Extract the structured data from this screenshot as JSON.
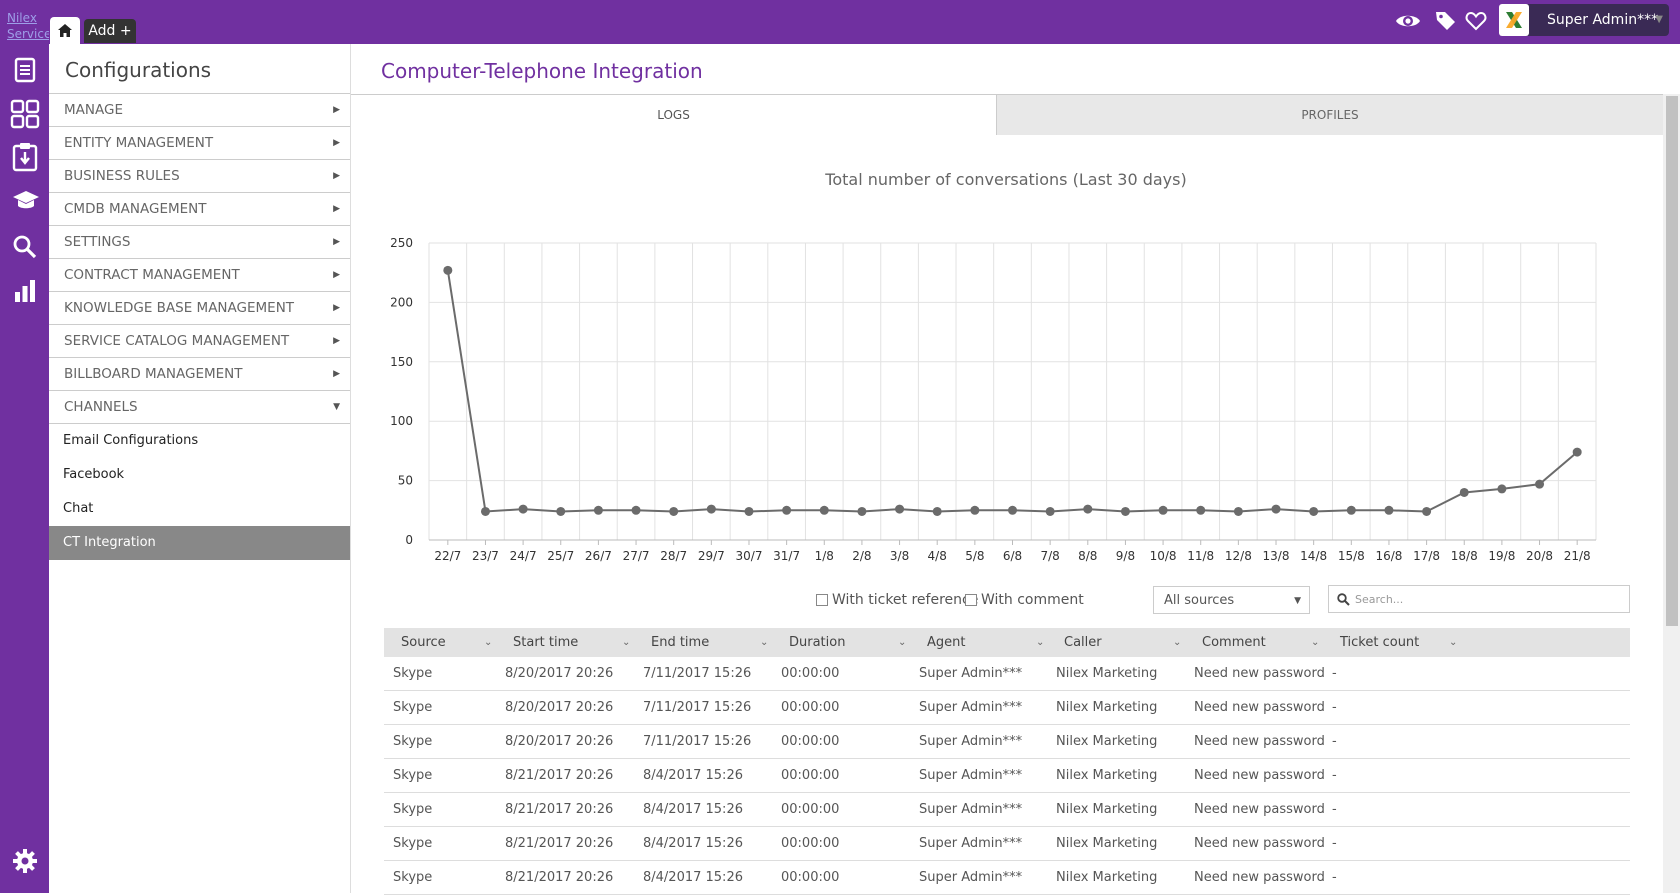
{
  "brand": "Nilex Service",
  "topbar": {
    "add_label": "Add +",
    "user_name": "Super Admin***"
  },
  "icons": {
    "home": "home-icon",
    "eye": "eye-icon",
    "tag": "tag-icon",
    "heart": "heart-icon",
    "rail": [
      "document-icon",
      "dashboard-icon",
      "clipboard-icon",
      "graduation-cap-icon",
      "search-icon",
      "bar-chart-icon",
      "gear-icon"
    ]
  },
  "sidebar": {
    "title": "Configurations",
    "items": [
      {
        "label": "MANAGE"
      },
      {
        "label": "ENTITY MANAGEMENT"
      },
      {
        "label": "BUSINESS RULES"
      },
      {
        "label": "CMDB MANAGEMENT"
      },
      {
        "label": "SETTINGS"
      },
      {
        "label": "CONTRACT MANAGEMENT"
      },
      {
        "label": "KNOWLEDGE BASE MANAGEMENT"
      },
      {
        "label": "SERVICE CATALOG MANAGEMENT"
      },
      {
        "label": "BILLBOARD MANAGEMENT"
      },
      {
        "label": "CHANNELS"
      }
    ],
    "sub_items": [
      {
        "label": "Email Configurations"
      },
      {
        "label": "Facebook"
      },
      {
        "label": "Chat"
      },
      {
        "label": "CT Integration"
      }
    ]
  },
  "main": {
    "title": "Computer-Telephone Integration",
    "tabs": [
      {
        "label": "LOGS"
      },
      {
        "label": "PROFILES"
      }
    ]
  },
  "chart_data": {
    "type": "line",
    "title": "Total number of conversations (Last 30 days)",
    "categories": [
      "22/7",
      "23/7",
      "24/7",
      "25/7",
      "26/7",
      "27/7",
      "28/7",
      "29/7",
      "30/7",
      "31/7",
      "1/8",
      "2/8",
      "3/8",
      "4/8",
      "5/8",
      "6/8",
      "7/8",
      "8/8",
      "9/8",
      "10/8",
      "11/8",
      "12/8",
      "13/8",
      "14/8",
      "15/8",
      "16/8",
      "17/8",
      "18/8",
      "19/8",
      "20/8",
      "21/8"
    ],
    "values": [
      227,
      24,
      26,
      24,
      25,
      25,
      24,
      26,
      24,
      25,
      25,
      24,
      26,
      24,
      25,
      25,
      24,
      26,
      24,
      25,
      25,
      24,
      26,
      24,
      25,
      25,
      24,
      40,
      43,
      47,
      74
    ],
    "ylim": [
      0,
      250
    ],
    "yticks": [
      0,
      50,
      100,
      150,
      200,
      250
    ],
    "grid": true,
    "color": "#6b6b6b"
  },
  "filters": {
    "with_ticket_reference": "With ticket reference",
    "with_comment": "With comment",
    "source_selected": "All sources",
    "search_placeholder": "Search..."
  },
  "table": {
    "columns": [
      "Source",
      "Start time",
      "End time",
      "Duration",
      "Agent",
      "Caller",
      "Comment",
      "Ticket count"
    ],
    "rows": [
      [
        "Skype",
        "8/20/2017 20:26",
        "7/11/2017 15:26",
        "00:00:00",
        "Super Admin***",
        "Nilex Marketing",
        "Need new password",
        "-"
      ],
      [
        "Skype",
        "8/20/2017 20:26",
        "7/11/2017 15:26",
        "00:00:00",
        "Super Admin***",
        "Nilex Marketing",
        "Need new password",
        "-"
      ],
      [
        "Skype",
        "8/20/2017 20:26",
        "7/11/2017 15:26",
        "00:00:00",
        "Super Admin***",
        "Nilex Marketing",
        "Need new password",
        "-"
      ],
      [
        "Skype",
        "8/21/2017 20:26",
        "8/4/2017 15:26",
        "00:00:00",
        "Super Admin***",
        "Nilex Marketing",
        "Need new password",
        "-"
      ],
      [
        "Skype",
        "8/21/2017 20:26",
        "8/4/2017 15:26",
        "00:00:00",
        "Super Admin***",
        "Nilex Marketing",
        "Need new password",
        "-"
      ],
      [
        "Skype",
        "8/21/2017 20:26",
        "8/4/2017 15:26",
        "00:00:00",
        "Super Admin***",
        "Nilex Marketing",
        "Need new password",
        "-"
      ],
      [
        "Skype",
        "8/21/2017 20:26",
        "8/4/2017 15:26",
        "00:00:00",
        "Super Admin***",
        "Nilex Marketing",
        "Need new password",
        "-"
      ]
    ]
  }
}
